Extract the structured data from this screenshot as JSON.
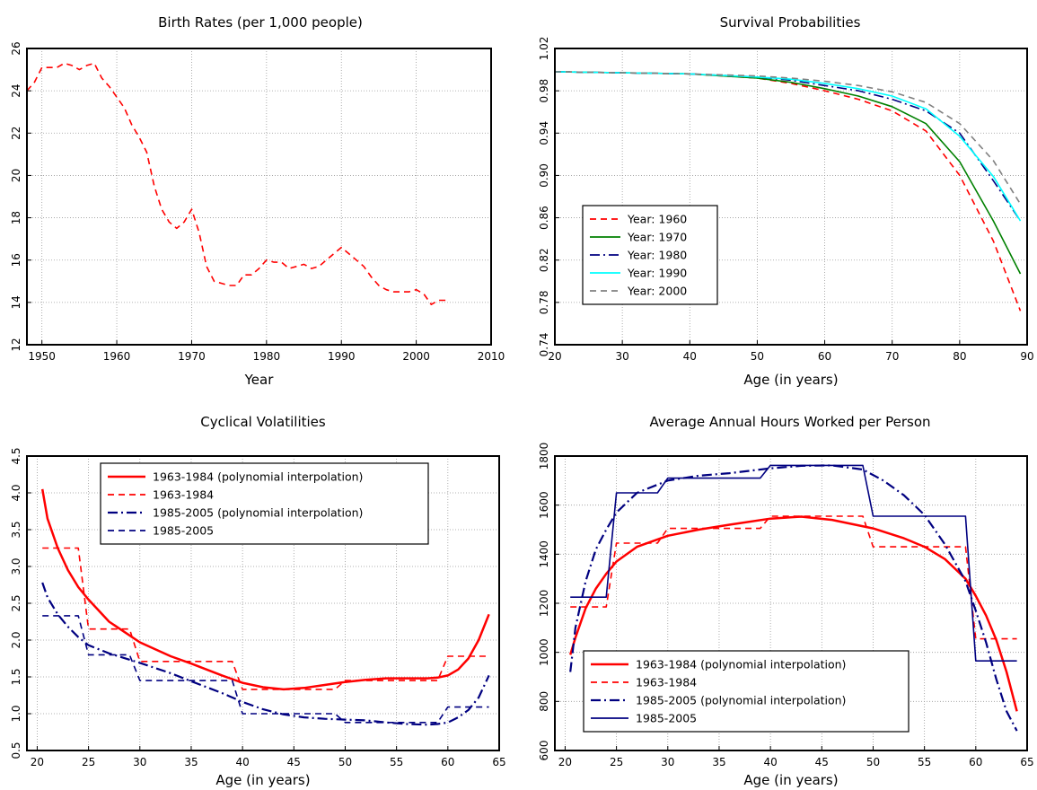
{
  "chart_data": [
    {
      "type": "line",
      "title": "Birth Rates (per 1,000 people)",
      "xlabel": "Year",
      "ylabel": "",
      "xlim": [
        1948,
        2010
      ],
      "ylim": [
        12,
        26
      ],
      "xticks": [
        1950,
        1960,
        1970,
        1980,
        1990,
        2000,
        2010
      ],
      "yticks": [
        12,
        14,
        16,
        18,
        20,
        22,
        24,
        26
      ],
      "grid": true,
      "legend": "none",
      "series": [
        {
          "color": "#ff0000",
          "dash": "dashed",
          "x": [
            1948,
            1949,
            1950,
            1951,
            1952,
            1953,
            1954,
            1955,
            1956,
            1957,
            1958,
            1959,
            1960,
            1961,
            1962,
            1963,
            1964,
            1965,
            1966,
            1967,
            1968,
            1969,
            1970,
            1971,
            1972,
            1973,
            1974,
            1975,
            1976,
            1977,
            1978,
            1979,
            1980,
            1981,
            1982,
            1983,
            1984,
            1985,
            1986,
            1987,
            1988,
            1989,
            1990,
            1991,
            1992,
            1993,
            1994,
            1995,
            1996,
            1997,
            1998,
            1999,
            2000,
            2001,
            2002,
            2003,
            2004
          ],
          "y": [
            24.0,
            24.4,
            25.1,
            25.1,
            25.1,
            25.3,
            25.2,
            25.0,
            25.2,
            25.3,
            24.6,
            24.2,
            23.7,
            23.2,
            22.4,
            21.8,
            21.1,
            19.5,
            18.4,
            17.8,
            17.5,
            17.8,
            18.4,
            17.3,
            15.7,
            15.0,
            14.9,
            14.8,
            14.8,
            15.3,
            15.3,
            15.6,
            16.0,
            15.9,
            15.9,
            15.6,
            15.7,
            15.8,
            15.6,
            15.7,
            16.0,
            16.3,
            16.6,
            16.3,
            16.0,
            15.7,
            15.2,
            14.8,
            14.6,
            14.5,
            14.5,
            14.5,
            14.6,
            14.4,
            13.9,
            14.1,
            14.1
          ]
        }
      ]
    },
    {
      "type": "line",
      "title": "Survival Probabilities",
      "xlabel": "Age (in years)",
      "ylabel": "",
      "xlim": [
        20,
        90
      ],
      "ylim": [
        0.74,
        1.02
      ],
      "xticks": [
        20,
        30,
        40,
        50,
        60,
        70,
        80,
        90
      ],
      "yticks": [
        "0.74",
        "0.78",
        "0.82",
        "0.86",
        "0.90",
        "0.94",
        "0.98",
        "1.02"
      ],
      "grid": true,
      "legend": "lower-left",
      "series": [
        {
          "name": "Year: 1960",
          "color": "#ff0000",
          "dash": "dashed",
          "x": [
            20,
            30,
            40,
            50,
            55,
            60,
            65,
            70,
            75,
            80,
            85,
            89
          ],
          "y": [
            0.998,
            0.997,
            0.996,
            0.992,
            0.987,
            0.98,
            0.972,
            0.961,
            0.942,
            0.9,
            0.838,
            0.772
          ]
        },
        {
          "name": "Year: 1970",
          "color": "#008000",
          "dash": "solid",
          "x": [
            20,
            30,
            40,
            50,
            55,
            60,
            65,
            70,
            75,
            80,
            85,
            89
          ],
          "y": [
            0.998,
            0.997,
            0.996,
            0.992,
            0.988,
            0.982,
            0.975,
            0.965,
            0.949,
            0.913,
            0.857,
            0.807
          ]
        },
        {
          "name": "Year: 1980",
          "color": "#000080",
          "dash": "dashdot",
          "x": [
            20,
            30,
            40,
            50,
            55,
            60,
            65,
            70,
            75,
            80,
            85,
            89
          ],
          "y": [
            0.998,
            0.997,
            0.996,
            0.993,
            0.99,
            0.985,
            0.98,
            0.972,
            0.961,
            0.94,
            0.895,
            0.857
          ]
        },
        {
          "name": "Year: 1990",
          "color": "#00ffff",
          "dash": "solid",
          "x": [
            20,
            30,
            40,
            50,
            55,
            60,
            65,
            70,
            75,
            80,
            85,
            89
          ],
          "y": [
            0.998,
            0.997,
            0.996,
            0.993,
            0.991,
            0.987,
            0.982,
            0.975,
            0.963,
            0.937,
            0.899,
            0.857
          ]
        },
        {
          "name": "Year: 2000",
          "color": "#808080",
          "dash": "dashed",
          "x": [
            20,
            30,
            40,
            50,
            55,
            60,
            65,
            70,
            75,
            80,
            85,
            89
          ],
          "y": [
            0.998,
            0.997,
            0.996,
            0.994,
            0.992,
            0.989,
            0.985,
            0.979,
            0.969,
            0.949,
            0.914,
            0.873
          ]
        }
      ]
    },
    {
      "type": "line",
      "title": "Cyclical Volatilities",
      "xlabel": "Age (in years)",
      "ylabel": "",
      "xlim": [
        19,
        65
      ],
      "ylim": [
        0.5,
        4.5
      ],
      "xticks": [
        20,
        25,
        30,
        35,
        40,
        45,
        50,
        55,
        60,
        65
      ],
      "yticks": [
        "0.5",
        "1.0",
        "1.5",
        "2.0",
        "2.5",
        "3.0",
        "3.5",
        "4.0",
        "4.5"
      ],
      "grid": true,
      "legend": "upper-right",
      "series": [
        {
          "name": "1963-1984 (polynomial interpolation)",
          "color": "#ff0000",
          "dash": "solid",
          "width": 2.5,
          "x": [
            20.5,
            21,
            22,
            23,
            24,
            25,
            27,
            30,
            33,
            35,
            38,
            40,
            42,
            44,
            46,
            48,
            50,
            52,
            54,
            56,
            58,
            59,
            60,
            61,
            62,
            63,
            64
          ],
          "y": [
            4.05,
            3.65,
            3.25,
            2.95,
            2.72,
            2.55,
            2.25,
            1.97,
            1.78,
            1.68,
            1.52,
            1.42,
            1.36,
            1.33,
            1.35,
            1.39,
            1.43,
            1.46,
            1.48,
            1.48,
            1.48,
            1.49,
            1.52,
            1.6,
            1.75,
            2.0,
            2.35
          ]
        },
        {
          "name": "1963-1984",
          "color": "#ff0000",
          "dash": "dashed",
          "x": [
            20.5,
            24,
            24,
            25,
            25,
            29,
            29,
            30,
            30,
            39,
            39,
            40,
            40,
            49,
            49,
            50,
            50,
            59,
            59,
            60,
            60,
            64
          ],
          "y": [
            3.25,
            3.25,
            3.25,
            2.15,
            2.15,
            2.15,
            2.15,
            1.71,
            1.71,
            1.71,
            1.71,
            1.33,
            1.33,
            1.33,
            1.33,
            1.45,
            1.45,
            1.45,
            1.45,
            1.78,
            1.78,
            1.78
          ]
        },
        {
          "name": "1985-2005 (polynomial interpolation)",
          "color": "#000080",
          "dash": "dashdot",
          "width": 2.2,
          "x": [
            20.5,
            21,
            22,
            23,
            24,
            25,
            27,
            30,
            33,
            35,
            38,
            40,
            42,
            44,
            46,
            48,
            50,
            52,
            54,
            56,
            58,
            59,
            60,
            61,
            62,
            63,
            64
          ],
          "y": [
            2.78,
            2.58,
            2.35,
            2.18,
            2.04,
            1.93,
            1.82,
            1.69,
            1.55,
            1.44,
            1.28,
            1.16,
            1.06,
            0.99,
            0.95,
            0.93,
            0.92,
            0.91,
            0.88,
            0.86,
            0.85,
            0.86,
            0.88,
            0.95,
            1.05,
            1.22,
            1.52
          ]
        },
        {
          "name": "1985-2005",
          "color": "#000080",
          "dash": "dashed",
          "x": [
            20.5,
            24,
            24,
            25,
            25,
            29,
            29,
            30,
            30,
            39,
            39,
            40,
            40,
            49,
            49,
            50,
            50,
            59,
            59,
            60,
            60,
            64
          ],
          "y": [
            2.33,
            2.33,
            2.33,
            1.8,
            1.8,
            1.8,
            1.8,
            1.45,
            1.45,
            1.45,
            1.45,
            1.0,
            1.0,
            1.0,
            1.0,
            0.88,
            0.88,
            0.88,
            0.88,
            1.09,
            1.09,
            1.09
          ]
        }
      ]
    },
    {
      "type": "line",
      "title": "Average Annual Hours Worked per Person",
      "xlabel": "Age (in years)",
      "ylabel": "",
      "xlim": [
        19,
        65
      ],
      "ylim": [
        600,
        1800
      ],
      "xticks": [
        20,
        25,
        30,
        35,
        40,
        45,
        50,
        55,
        60,
        65
      ],
      "yticks": [
        600,
        800,
        1000,
        1200,
        1400,
        1600,
        1800
      ],
      "grid": true,
      "legend": "lower-left",
      "series": [
        {
          "name": "1963-1984 (polynomial interpolation)",
          "color": "#ff0000",
          "dash": "solid",
          "width": 2.5,
          "x": [
            20.5,
            21,
            22,
            23,
            24,
            25,
            27,
            30,
            33,
            36,
            40,
            43,
            46,
            50,
            53,
            55,
            57,
            59,
            60,
            61,
            62,
            63,
            64
          ],
          "y": [
            990,
            1060,
            1180,
            1260,
            1320,
            1370,
            1430,
            1475,
            1500,
            1520,
            1545,
            1553,
            1540,
            1505,
            1465,
            1430,
            1380,
            1300,
            1230,
            1150,
            1050,
            920,
            760
          ]
        },
        {
          "name": "1963-1984",
          "color": "#ff0000",
          "dash": "dashed",
          "x": [
            20.5,
            24,
            24,
            25,
            25,
            29,
            29,
            30,
            30,
            39,
            39,
            40,
            40,
            49,
            49,
            50,
            50,
            59,
            59,
            60,
            60,
            64
          ],
          "y": [
            1185,
            1185,
            1185,
            1445,
            1445,
            1445,
            1445,
            1505,
            1505,
            1505,
            1505,
            1555,
            1555,
            1555,
            1555,
            1430,
            1430,
            1430,
            1430,
            1055,
            1055,
            1055
          ]
        },
        {
          "name": "1985-2005 (polynomial interpolation)",
          "color": "#000080",
          "dash": "dashdot",
          "width": 2.2,
          "x": [
            20.5,
            21,
            22,
            23,
            24,
            25,
            27,
            30,
            33,
            36,
            40,
            43,
            46,
            49,
            51,
            53,
            55,
            57,
            59,
            60,
            61,
            62,
            63,
            64
          ],
          "y": [
            920,
            1100,
            1290,
            1420,
            1500,
            1570,
            1650,
            1700,
            1720,
            1730,
            1750,
            1760,
            1762,
            1745,
            1700,
            1640,
            1560,
            1440,
            1290,
            1170,
            1040,
            890,
            760,
            680
          ]
        },
        {
          "name": "1985-2005",
          "color": "#000080",
          "dash": "solid",
          "x": [
            20.5,
            24,
            24,
            25,
            25,
            29,
            29,
            30,
            30,
            39,
            39,
            40,
            40,
            49,
            49,
            50,
            50,
            59,
            59,
            60,
            60,
            64
          ],
          "y": [
            1225,
            1225,
            1225,
            1650,
            1650,
            1650,
            1650,
            1710,
            1710,
            1710,
            1710,
            1762,
            1762,
            1762,
            1762,
            1555,
            1555,
            1555,
            1555,
            965,
            965,
            965
          ]
        }
      ]
    }
  ]
}
